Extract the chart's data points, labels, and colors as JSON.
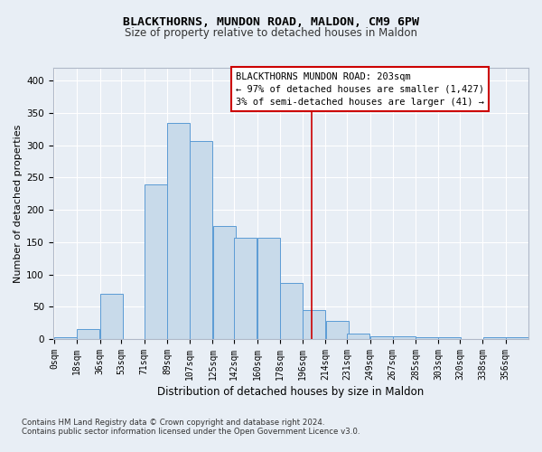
{
  "title1": "BLACKTHORNS, MUNDON ROAD, MALDON, CM9 6PW",
  "title2": "Size of property relative to detached houses in Maldon",
  "xlabel": "Distribution of detached houses by size in Maldon",
  "ylabel": "Number of detached properties",
  "footnote1": "Contains HM Land Registry data © Crown copyright and database right 2024.",
  "footnote2": "Contains public sector information licensed under the Open Government Licence v3.0.",
  "annotation_title": "BLACKTHORNS MUNDON ROAD: 203sqm",
  "annotation_line1": "← 97% of detached houses are smaller (1,427)",
  "annotation_line2": "3% of semi-detached houses are larger (41) →",
  "property_size": 203,
  "bar_labels": [
    "0sqm",
    "18sqm",
    "36sqm",
    "53sqm",
    "71sqm",
    "89sqm",
    "107sqm",
    "125sqm",
    "142sqm",
    "160sqm",
    "178sqm",
    "196sqm",
    "214sqm",
    "231sqm",
    "249sqm",
    "267sqm",
    "285sqm",
    "303sqm",
    "320sqm",
    "338sqm",
    "356sqm"
  ],
  "bar_values": [
    3,
    15,
    70,
    0,
    240,
    335,
    307,
    175,
    157,
    157,
    87,
    45,
    28,
    8,
    5,
    5,
    3,
    3,
    0,
    3,
    3
  ],
  "bin_starts": [
    0,
    18,
    36,
    53,
    71,
    89,
    107,
    125,
    142,
    160,
    178,
    196,
    214,
    231,
    249,
    267,
    285,
    303,
    320,
    338,
    356
  ],
  "bin_width": 18,
  "bar_color": "#c8daea",
  "bar_edge_color": "#5b9bd5",
  "vline_color": "#cc0000",
  "vline_x": 203,
  "box_color": "#cc0000",
  "ylim": [
    0,
    420
  ],
  "yticks": [
    0,
    50,
    100,
    150,
    200,
    250,
    300,
    350,
    400
  ],
  "bg_color": "#e8eef5",
  "grid_color": "#ffffff",
  "title_fontsize": 9.5,
  "subtitle_fontsize": 8.5,
  "axis_label_fontsize": 8,
  "tick_fontsize": 7,
  "annot_fontsize": 7.5
}
